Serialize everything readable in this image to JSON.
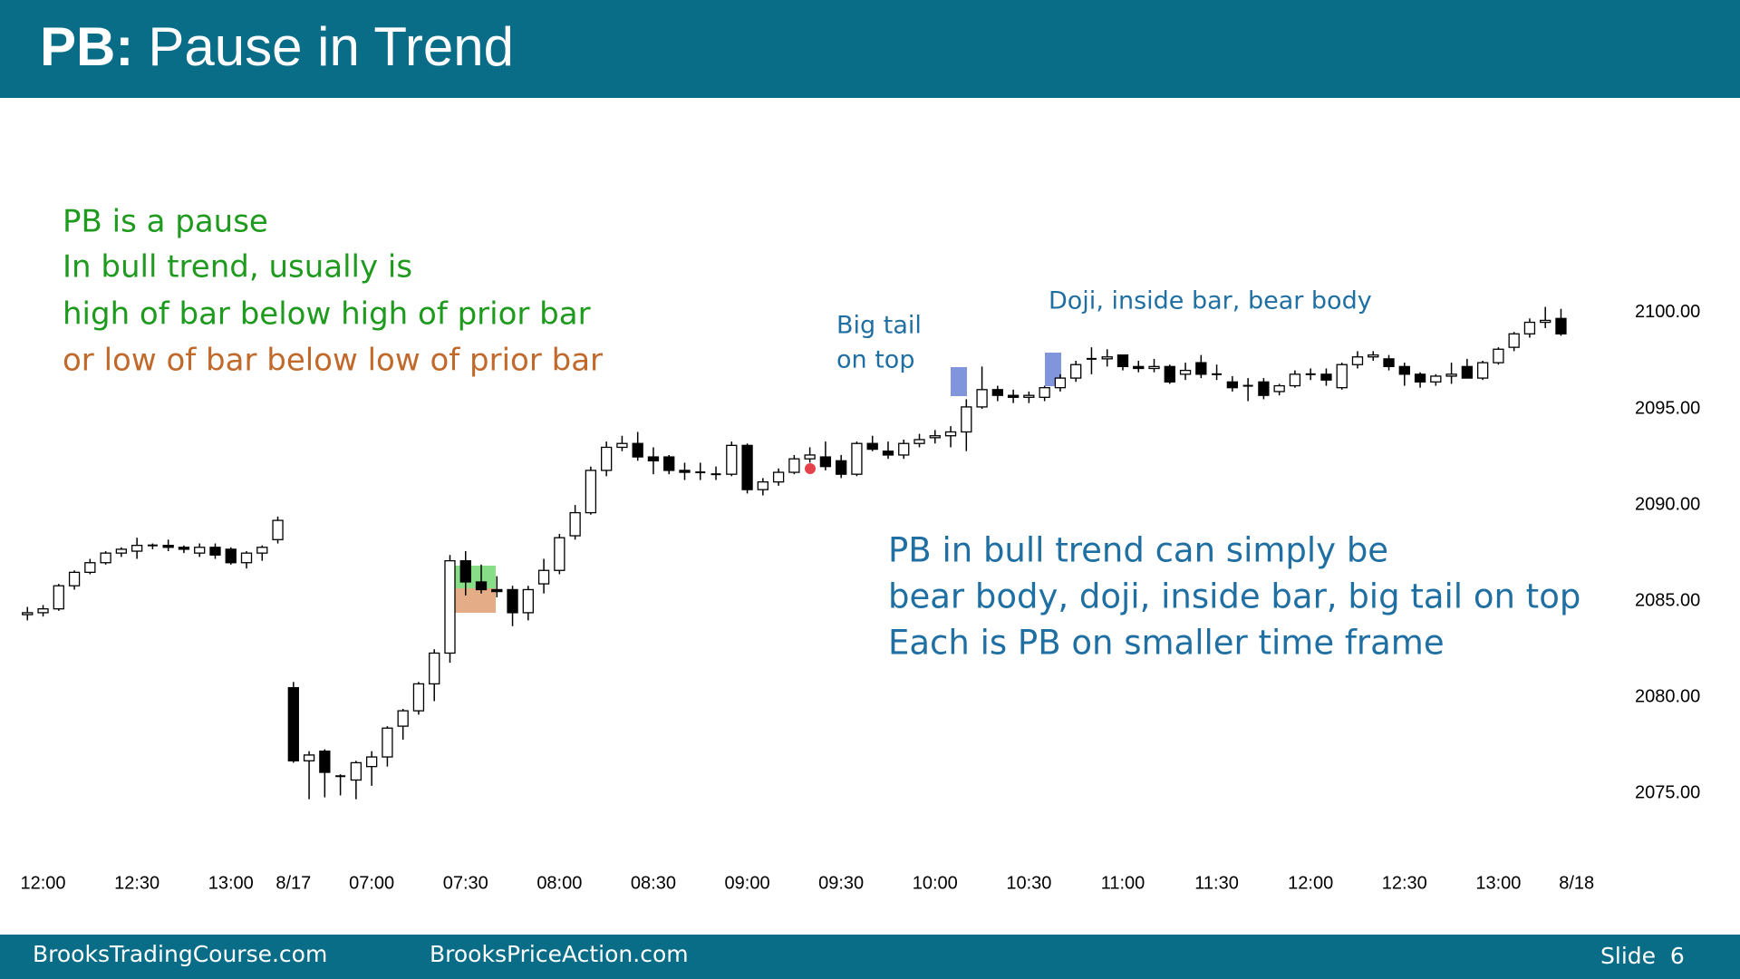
{
  "header": {
    "prefix": "PB:",
    "title": "Pause in Trend"
  },
  "notes": {
    "green": [
      "PB is a pause",
      "In bull trend, usually is",
      "high of bar below high of prior bar"
    ],
    "orange": "or low of bar below low of prior bar",
    "big_tail": [
      "Big tail",
      "on top"
    ],
    "doji": "Doji, inside bar, bear body",
    "blue": [
      "PB in bull trend can simply be",
      "bear body, doji, inside bar, big tail on top",
      "Each is PB on smaller time frame"
    ]
  },
  "chart_data": {
    "type": "candlestick",
    "candles": [
      [
        2084.3,
        2084.7,
        2084.0,
        2084.4
      ],
      [
        2084.4,
        2084.8,
        2084.2,
        2084.6
      ],
      [
        2084.6,
        2085.9,
        2084.5,
        2085.8
      ],
      [
        2085.8,
        2086.6,
        2085.6,
        2086.5
      ],
      [
        2086.5,
        2087.2,
        2086.4,
        2087.0
      ],
      [
        2087.0,
        2087.6,
        2086.9,
        2087.5
      ],
      [
        2087.5,
        2087.8,
        2087.3,
        2087.7
      ],
      [
        2087.6,
        2088.3,
        2087.2,
        2087.9
      ],
      [
        2087.9,
        2088.0,
        2087.7,
        2087.9
      ],
      [
        2087.9,
        2088.2,
        2087.6,
        2087.8
      ],
      [
        2087.8,
        2087.9,
        2087.5,
        2087.7
      ],
      [
        2087.5,
        2088.0,
        2087.3,
        2087.8
      ],
      [
        2087.8,
        2088.0,
        2087.2,
        2087.4
      ],
      [
        2087.7,
        2087.8,
        2086.9,
        2087.0
      ],
      [
        2087.0,
        2087.6,
        2086.7,
        2087.5
      ],
      [
        2087.5,
        2087.9,
        2087.1,
        2087.8
      ],
      [
        2088.2,
        2089.4,
        2088.0,
        2089.2
      ],
      [
        2080.5,
        2080.8,
        2076.6,
        2076.7
      ],
      [
        2076.7,
        2077.2,
        2074.7,
        2077.0
      ],
      [
        2077.2,
        2077.3,
        2074.8,
        2076.1
      ],
      [
        2075.9,
        2076.0,
        2074.9,
        2075.9
      ],
      [
        2075.7,
        2076.7,
        2074.7,
        2076.6
      ],
      [
        2076.4,
        2077.2,
        2075.4,
        2076.9
      ],
      [
        2076.9,
        2078.5,
        2076.4,
        2078.4
      ],
      [
        2078.5,
        2079.4,
        2077.8,
        2079.3
      ],
      [
        2079.3,
        2080.8,
        2079.1,
        2080.7
      ],
      [
        2080.7,
        2082.5,
        2079.8,
        2082.3
      ],
      [
        2082.3,
        2087.4,
        2081.8,
        2087.1
      ],
      [
        2087.1,
        2087.6,
        2085.3,
        2086.0
      ],
      [
        2086.0,
        2086.9,
        2085.4,
        2085.6
      ],
      [
        2085.6,
        2086.3,
        2085.2,
        2085.5
      ],
      [
        2085.6,
        2085.8,
        2083.7,
        2084.4
      ],
      [
        2084.4,
        2085.8,
        2084.0,
        2085.6
      ],
      [
        2085.9,
        2087.2,
        2085.4,
        2086.6
      ],
      [
        2086.6,
        2088.5,
        2086.4,
        2088.3
      ],
      [
        2088.4,
        2090.0,
        2088.2,
        2089.6
      ],
      [
        2089.6,
        2092.0,
        2089.5,
        2091.8
      ],
      [
        2091.8,
        2093.3,
        2091.5,
        2093.0
      ],
      [
        2093.0,
        2093.6,
        2092.8,
        2093.2
      ],
      [
        2093.2,
        2093.8,
        2092.3,
        2092.5
      ],
      [
        2092.5,
        2093.0,
        2091.6,
        2092.3
      ],
      [
        2092.5,
        2092.6,
        2091.6,
        2091.8
      ],
      [
        2091.8,
        2092.2,
        2091.3,
        2091.7
      ],
      [
        2091.7,
        2092.2,
        2091.3,
        2091.7
      ],
      [
        2091.6,
        2092.0,
        2091.3,
        2091.6
      ],
      [
        2091.6,
        2093.3,
        2091.5,
        2093.1
      ],
      [
        2093.1,
        2093.2,
        2090.6,
        2090.8
      ],
      [
        2090.8,
        2091.4,
        2090.5,
        2091.2
      ],
      [
        2091.2,
        2091.9,
        2091.0,
        2091.7
      ],
      [
        2091.7,
        2092.6,
        2091.6,
        2092.4
      ],
      [
        2092.4,
        2093.0,
        2092.2,
        2092.6
      ],
      [
        2092.5,
        2093.3,
        2091.8,
        2092.0
      ],
      [
        2092.3,
        2092.6,
        2091.4,
        2091.6
      ],
      [
        2091.6,
        2093.3,
        2091.5,
        2093.2
      ],
      [
        2093.2,
        2093.6,
        2092.8,
        2092.9
      ],
      [
        2092.8,
        2093.3,
        2092.4,
        2092.6
      ],
      [
        2092.6,
        2093.4,
        2092.4,
        2093.2
      ],
      [
        2093.2,
        2093.7,
        2093.0,
        2093.4
      ],
      [
        2093.5,
        2093.9,
        2093.2,
        2093.6
      ],
      [
        2093.6,
        2094.1,
        2093.0,
        2093.8
      ],
      [
        2093.8,
        2095.5,
        2092.8,
        2095.1
      ],
      [
        2095.1,
        2097.2,
        2095.0,
        2096.0
      ],
      [
        2096.0,
        2096.2,
        2095.4,
        2095.7
      ],
      [
        2095.7,
        2096.0,
        2095.3,
        2095.6
      ],
      [
        2095.6,
        2095.9,
        2095.3,
        2095.7
      ],
      [
        2095.6,
        2096.2,
        2095.4,
        2096.1
      ],
      [
        2096.1,
        2096.8,
        2095.9,
        2096.6
      ],
      [
        2096.6,
        2097.5,
        2096.4,
        2097.3
      ],
      [
        2097.6,
        2098.2,
        2096.8,
        2097.6
      ],
      [
        2097.6,
        2098.1,
        2097.2,
        2097.7
      ],
      [
        2097.8,
        2097.8,
        2097.0,
        2097.2
      ],
      [
        2097.2,
        2097.5,
        2096.9,
        2097.1
      ],
      [
        2097.1,
        2097.6,
        2096.9,
        2097.2
      ],
      [
        2097.2,
        2097.3,
        2096.3,
        2096.4
      ],
      [
        2096.8,
        2097.4,
        2096.5,
        2097.0
      ],
      [
        2097.4,
        2097.8,
        2096.6,
        2096.8
      ],
      [
        2096.8,
        2097.3,
        2096.5,
        2096.8
      ],
      [
        2096.4,
        2096.7,
        2095.9,
        2096.1
      ],
      [
        2096.2,
        2096.6,
        2095.4,
        2096.2
      ],
      [
        2096.4,
        2096.6,
        2095.5,
        2095.7
      ],
      [
        2095.9,
        2096.3,
        2095.7,
        2096.2
      ],
      [
        2096.2,
        2097.0,
        2096.1,
        2096.8
      ],
      [
        2096.8,
        2097.1,
        2096.5,
        2096.8
      ],
      [
        2096.8,
        2097.1,
        2096.2,
        2096.5
      ],
      [
        2096.1,
        2097.4,
        2096.0,
        2097.3
      ],
      [
        2097.3,
        2098.0,
        2097.1,
        2097.7
      ],
      [
        2097.7,
        2098.0,
        2097.5,
        2097.8
      ],
      [
        2097.6,
        2097.8,
        2097.0,
        2097.2
      ],
      [
        2097.2,
        2097.4,
        2096.2,
        2096.8
      ],
      [
        2096.8,
        2096.9,
        2096.1,
        2096.4
      ],
      [
        2096.4,
        2096.8,
        2096.2,
        2096.7
      ],
      [
        2096.7,
        2097.4,
        2096.3,
        2096.8
      ],
      [
        2097.2,
        2097.6,
        2096.6,
        2096.6
      ],
      [
        2096.6,
        2097.5,
        2096.5,
        2097.4
      ],
      [
        2097.4,
        2098.2,
        2097.3,
        2098.1
      ],
      [
        2098.2,
        2099.0,
        2098.0,
        2098.9
      ],
      [
        2098.9,
        2099.7,
        2098.7,
        2099.5
      ],
      [
        2099.5,
        2100.3,
        2099.2,
        2099.6
      ],
      [
        2099.7,
        2100.2,
        2098.8,
        2098.9
      ]
    ],
    "xlim": [
      -1,
      100
    ],
    "xticks": [
      {
        "value": 1,
        "label": "12:00"
      },
      {
        "value": 7,
        "label": "12:30"
      },
      {
        "value": 13,
        "label": "13:00"
      },
      {
        "value": 17,
        "label": "8/17"
      },
      {
        "value": 22,
        "label": "07:00"
      },
      {
        "value": 28,
        "label": "07:30"
      },
      {
        "value": 34,
        "label": "08:00"
      },
      {
        "value": 40,
        "label": "08:30"
      },
      {
        "value": 46,
        "label": "09:00"
      },
      {
        "value": 52,
        "label": "09:30"
      },
      {
        "value": 58,
        "label": "10:00"
      },
      {
        "value": 64,
        "label": "10:30"
      },
      {
        "value": 70,
        "label": "11:00"
      },
      {
        "value": 76,
        "label": "11:30"
      },
      {
        "value": 82,
        "label": "12:00"
      },
      {
        "value": 88,
        "label": "12:30"
      },
      {
        "value": 94,
        "label": "13:00"
      },
      {
        "value": 99,
        "label": "8/18"
      }
    ],
    "ylim": [
      2072,
      2109
    ],
    "yticks": [
      {
        "value": 2075,
        "label": "2075.00"
      },
      {
        "value": 2080,
        "label": "2080.00"
      },
      {
        "value": 2085,
        "label": "2085.00"
      },
      {
        "value": 2090,
        "label": "2090.00"
      },
      {
        "value": 2095,
        "label": "2095.00"
      },
      {
        "value": 2100,
        "label": "2100.00"
      }
    ]
  },
  "footer": {
    "left": "BrooksTradingCourse.com",
    "middle": "BrooksPriceAction.com",
    "slide": "Slide  6"
  }
}
